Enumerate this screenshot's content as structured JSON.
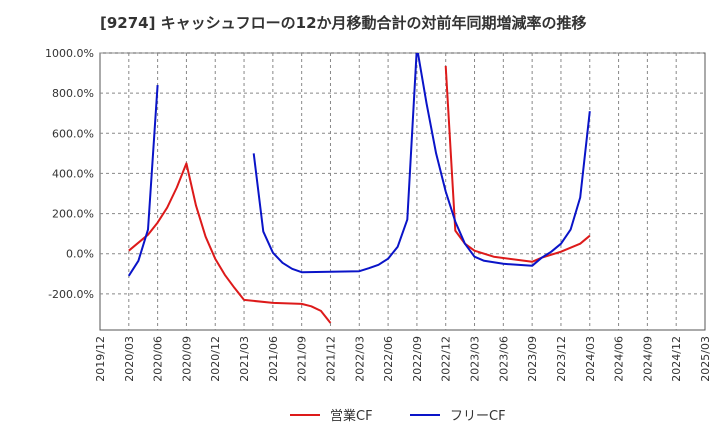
{
  "chart_data": {
    "type": "line",
    "title": "[9274]  キャッシュフローの12か月移動合計の対前年同期増減率の推移",
    "xlabel": "",
    "ylabel": "",
    "ylim": [
      -380,
      1000
    ],
    "yticks": [
      -200,
      0,
      200,
      400,
      600,
      800,
      1000
    ],
    "ytick_labels": [
      "-200.0%",
      "0.0%",
      "200.0%",
      "400.0%",
      "600.0%",
      "800.0%",
      "1000.0%"
    ],
    "x_categories": [
      "2019/12",
      "2020/03",
      "2020/06",
      "2020/09",
      "2020/12",
      "2021/03",
      "2021/06",
      "2021/09",
      "2021/12",
      "2022/03",
      "2022/06",
      "2022/09",
      "2022/12",
      "2023/03",
      "2023/06",
      "2023/09",
      "2023/12",
      "2024/03",
      "2024/06",
      "2024/09",
      "2024/12",
      "2025/03"
    ],
    "grid": true,
    "legend_position": "bottom-center",
    "series": [
      {
        "name": "営業CF",
        "color": "#dd1a1a",
        "segments": [
          [
            [
              "2020/03",
              15
            ],
            [
              "2020/04",
              55
            ],
            [
              "2020/05",
              95
            ],
            [
              "2020/06",
              155
            ],
            [
              "2020/07",
              230
            ],
            [
              "2020/08",
              330
            ],
            [
              "2020/09",
              450
            ],
            [
              "2020/10",
              240
            ],
            [
              "2020/11",
              85
            ],
            [
              "2020/12",
              -25
            ],
            [
              "2021/01",
              -105
            ],
            [
              "2021/02",
              -170
            ],
            [
              "2021/03",
              -230
            ],
            [
              "2021/06",
              -245
            ],
            [
              "2021/09",
              -250
            ],
            [
              "2021/10",
              -262
            ],
            [
              "2021/11",
              -285
            ],
            [
              "2021/12",
              -345
            ]
          ],
          [
            [
              "2022/12",
              935
            ],
            [
              "2023/01",
              115
            ],
            [
              "2023/02",
              50
            ],
            [
              "2023/03",
              15
            ],
            [
              "2023/05",
              -15
            ],
            [
              "2023/09",
              -40
            ],
            [
              "2023/10",
              -20
            ],
            [
              "2023/12",
              10
            ],
            [
              "2024/02",
              50
            ],
            [
              "2024/03",
              90
            ]
          ]
        ]
      },
      {
        "name": "フリーCF",
        "color": "#0a14c8",
        "segments": [
          [
            [
              "2020/03",
              -110
            ],
            [
              "2020/04",
              -35
            ],
            [
              "2020/05",
              120
            ],
            [
              "2020/06",
              840
            ]
          ],
          [
            [
              "2021/04",
              500
            ],
            [
              "2021/05",
              110
            ],
            [
              "2021/06",
              5
            ],
            [
              "2021/07",
              -45
            ],
            [
              "2021/08",
              -75
            ],
            [
              "2021/09",
              -92
            ],
            [
              "2021/12",
              -90
            ],
            [
              "2022/03",
              -87
            ],
            [
              "2022/04",
              -72
            ],
            [
              "2022/05",
              -55
            ],
            [
              "2022/06",
              -25
            ],
            [
              "2022/07",
              35
            ],
            [
              "2022/08",
              170
            ],
            [
              "2022/09",
              1030
            ],
            [
              "2022/10",
              750
            ],
            [
              "2022/11",
              500
            ],
            [
              "2022/12",
              310
            ],
            [
              "2023/01",
              160
            ],
            [
              "2023/02",
              50
            ],
            [
              "2023/03",
              -15
            ],
            [
              "2023/04",
              -35
            ],
            [
              "2023/06",
              -50
            ],
            [
              "2023/09",
              -60
            ],
            [
              "2023/10",
              -20
            ],
            [
              "2023/11",
              10
            ],
            [
              "2023/12",
              50
            ],
            [
              "2024/01",
              120
            ],
            [
              "2024/02",
              280
            ],
            [
              "2024/03",
              710
            ]
          ]
        ]
      }
    ]
  }
}
